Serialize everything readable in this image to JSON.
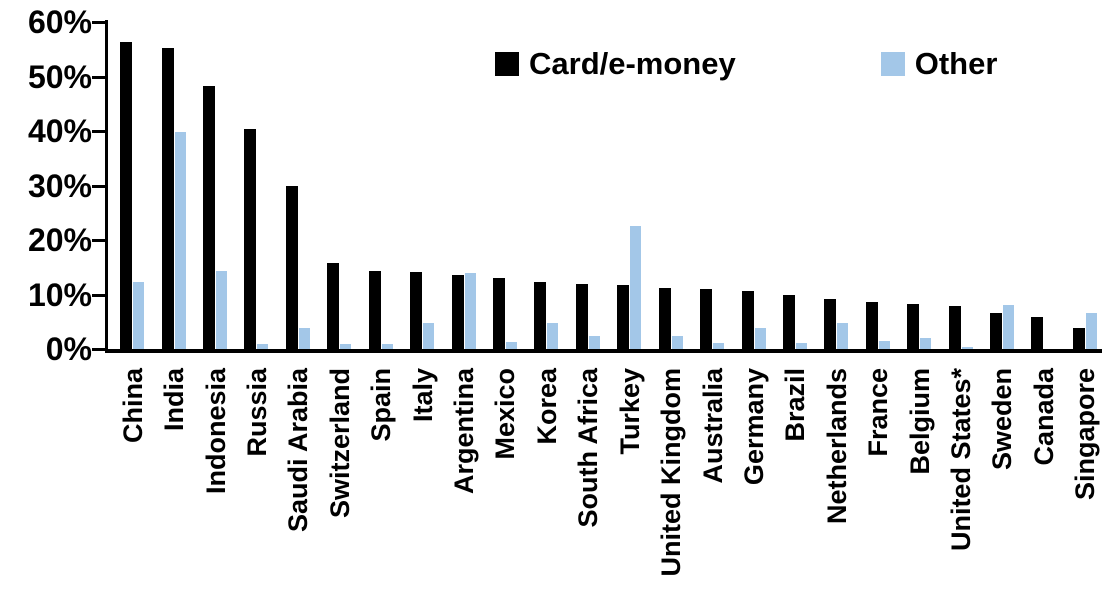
{
  "chart_data": {
    "type": "bar",
    "title": "",
    "xlabel": "",
    "ylabel": "",
    "ylim": [
      0,
      60
    ],
    "y_tick_labels": [
      "0%",
      "10%",
      "20%",
      "30%",
      "40%",
      "50%",
      "60%"
    ],
    "y_tick_values": [
      0,
      10,
      20,
      30,
      40,
      50,
      60
    ],
    "grid": false,
    "legend_position": "top-center",
    "categories": [
      "China",
      "India",
      "Indonesia",
      "Russia",
      "Saudi Arabia",
      "Switzerland",
      "Spain",
      "Italy",
      "Argentina",
      "Mexico",
      "Korea",
      "South Africa",
      "Turkey",
      "United Kingdom",
      "Australia",
      "Germany",
      "Brazil",
      "Netherlands",
      "France",
      "Belgium",
      "United States*",
      "Sweden",
      "Canada",
      "Singapore"
    ],
    "series": [
      {
        "name": "Card/e-money",
        "color": "#000000",
        "values": [
          56.4,
          55.2,
          48.3,
          40.3,
          29.9,
          15.7,
          14.3,
          14.1,
          13.5,
          13.1,
          12.3,
          11.9,
          11.8,
          11.2,
          11.0,
          10.7,
          9.9,
          9.2,
          8.6,
          8.2,
          7.9,
          6.6,
          5.9,
          3.9
        ]
      },
      {
        "name": "Other",
        "color": "#A3C7E8",
        "values": [
          12.3,
          39.8,
          14.3,
          1.0,
          3.9,
          1.0,
          1.0,
          4.7,
          13.9,
          1.3,
          4.7,
          2.4,
          22.6,
          2.4,
          1.1,
          3.9,
          1.1,
          4.8,
          1.5,
          2.0,
          0.4,
          8.1,
          0.0,
          6.6
        ]
      }
    ]
  }
}
